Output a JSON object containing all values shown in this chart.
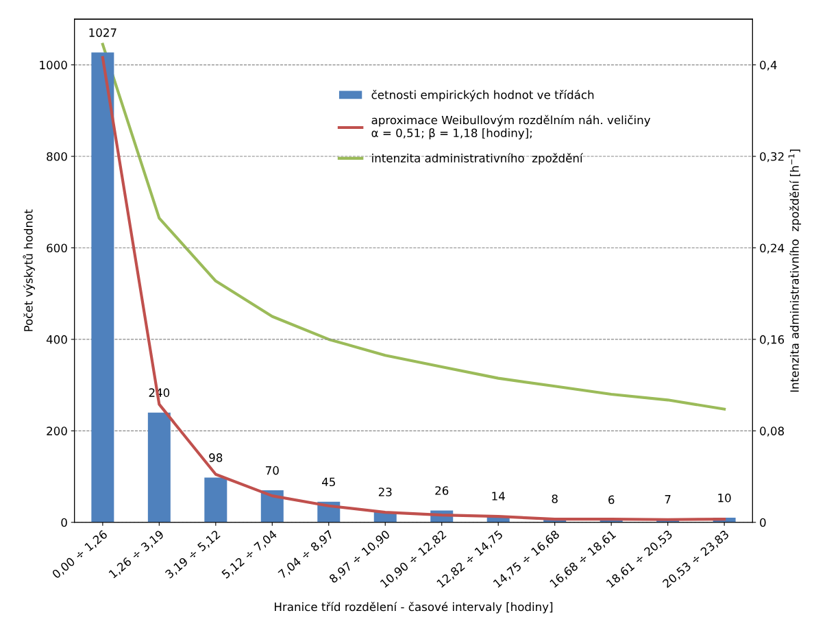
{
  "chart_data": {
    "type": "bar",
    "xlabel": "Hranice tříd rozdělení - časové intervaly [hodiny]",
    "ylabel": "Počet výskytů hodnot",
    "y2label": "Intenzita administrativního  zpoždění [h$^{−1}$]",
    "categories": [
      "0,00 ÷ 1,26",
      "1,26 ÷ 3,19",
      "3,19 ÷ 5,12",
      "5,12 ÷ 7,04",
      "7,04 ÷ 8,97",
      "8,97 ÷ 10,90",
      "10,90 ÷ 12,82",
      "12,82 ÷ 14,75",
      "14,75 ÷ 16,68",
      "16,68 ÷ 18,61",
      "18,61 ÷ 20,53",
      "20,53 ÷ 23,83"
    ],
    "series": [
      {
        "name": "četnosti empirických hodnot ve třídách",
        "color": "#4f81bd",
        "data_labels": true,
        "values": [
          1027,
          240,
          98,
          70,
          45,
          23,
          26,
          14,
          8,
          6,
          7,
          10
        ]
      },
      {
        "name": "aproximace Weibullovým rozdělním náh. veličiny\nα = 0,51; β = 1,18 [hodiny];",
        "type": "line",
        "color": "#c0504d",
        "values": [
          1016,
          258,
          105,
          58,
          36,
          22,
          16,
          13,
          7,
          7,
          6,
          7
        ]
      },
      {
        "name": "intenzita administrativního  zpoždění",
        "type": "line",
        "axis": "y2",
        "color": "#9bbb59",
        "values": [
          0.418,
          0.266,
          0.211,
          0.18,
          0.16,
          0.146,
          0.136,
          0.126,
          0.119,
          0.112,
          0.107,
          0.099
        ]
      }
    ],
    "ylim": [
      0,
      1100
    ],
    "yticks": [
      0,
      200,
      400,
      600,
      800,
      1000
    ],
    "y2lim": [
      0,
      0.44
    ],
    "y2ticks": [
      0,
      {
        "value": 0.08,
        "label": "0,08"
      },
      {
        "value": 0.16,
        "label": "0,16"
      },
      {
        "value": 0.24,
        "label": "0,24"
      },
      {
        "value": 0.32,
        "label": "0,32"
      },
      {
        "value": 0.4,
        "label": "0,4"
      }
    ],
    "grid": "y",
    "legend": "top"
  }
}
